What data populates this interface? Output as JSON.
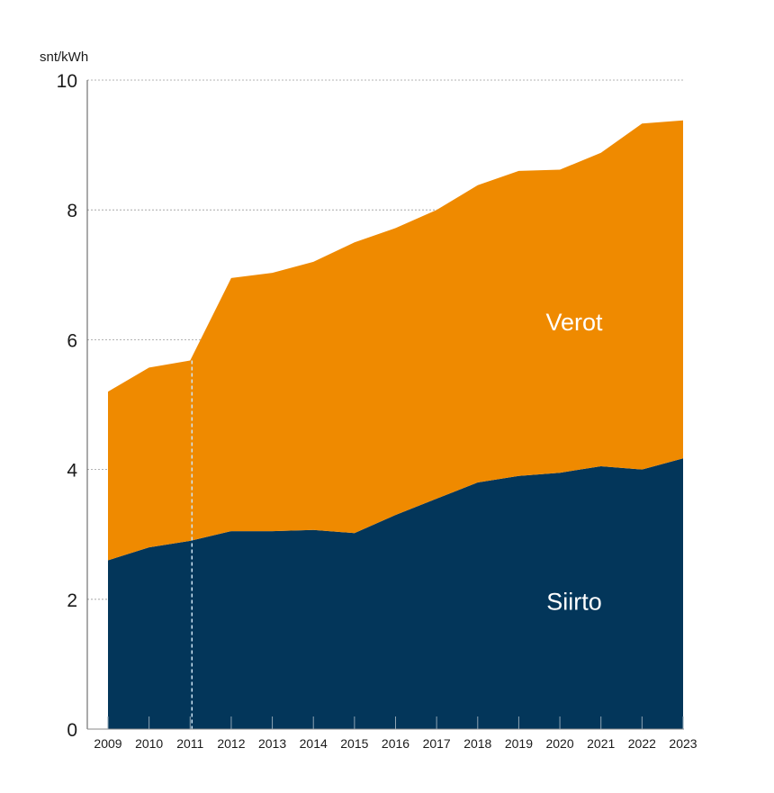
{
  "chart_data": {
    "type": "area",
    "stacked": true,
    "ylabel": "snt/kWh",
    "ylim": [
      0,
      10
    ],
    "yticks": [
      0,
      2,
      4,
      6,
      8,
      10
    ],
    "grid": true,
    "x": [
      2009,
      2010,
      2011,
      2012,
      2013,
      2014,
      2015,
      2016,
      2017,
      2018,
      2019,
      2020,
      2021,
      2022,
      2023
    ],
    "x_labels": [
      "2009",
      "2010",
      "2011",
      "2012",
      "2013",
      "2014",
      "2015",
      "2016",
      "2017",
      "2018",
      "2019",
      "2020",
      "2021",
      "2022",
      "2023"
    ],
    "marker_year": 2011,
    "series": [
      {
        "name": "Siirto",
        "color": "#03365a",
        "values": [
          2.6,
          2.8,
          2.9,
          3.05,
          3.05,
          3.07,
          3.02,
          3.3,
          3.55,
          3.8,
          3.9,
          3.95,
          4.05,
          4.0,
          4.17
        ]
      },
      {
        "name": "Verot",
        "color": "#ef8a00",
        "values": [
          2.6,
          2.77,
          2.78,
          3.9,
          3.98,
          4.13,
          4.48,
          4.42,
          4.45,
          4.58,
          4.7,
          4.67,
          4.83,
          5.33,
          5.21
        ]
      }
    ]
  }
}
